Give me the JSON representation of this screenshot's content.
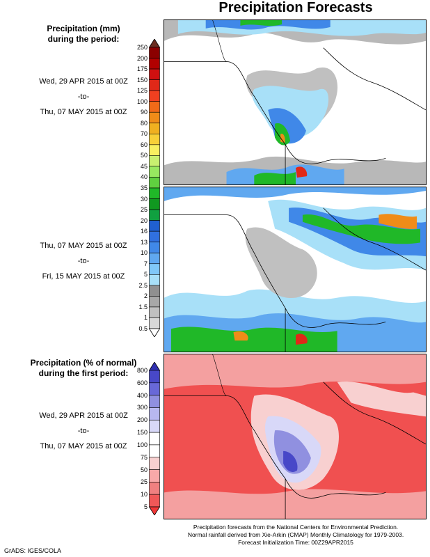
{
  "title": "Precipitation Forecasts",
  "precip_header": [
    "Precipitation (mm)",
    "during the period:"
  ],
  "period1": {
    "start": "Wed, 29 APR 2015 at 00Z",
    "sep": "-to-",
    "end": "Thu, 07 MAY 2015 at 00Z"
  },
  "period2": {
    "start": "Thu, 07 MAY 2015 at 00Z",
    "sep": "-to-",
    "end": "Fri, 15 MAY 2015 at 00Z"
  },
  "anom_header": [
    "Precipitation (% of normal)",
    "during the first period:"
  ],
  "period3": {
    "start": "Wed, 29 APR 2015 at 00Z",
    "sep": "-to-",
    "end": "Thu, 07 MAY 2015 at 00Z"
  },
  "precip_scale": {
    "labels": [
      "250",
      "200",
      "175",
      "150",
      "125",
      "100",
      "90",
      "80",
      "70",
      "60",
      "50",
      "45",
      "40",
      "35",
      "30",
      "25",
      "20",
      "16",
      "13",
      "10",
      "7",
      "5",
      "2.5",
      "2",
      "1.5",
      "1",
      "0.5"
    ],
    "colors": [
      "#6b2d20",
      "#8b0000",
      "#b10000",
      "#d01010",
      "#e02818",
      "#f04020",
      "#f06a18",
      "#f08c18",
      "#f0b020",
      "#f8d038",
      "#f8f060",
      "#c8f070",
      "#98e860",
      "#60d040",
      "#20b828",
      "#109820",
      "#10a040",
      "#2060d0",
      "#3070e0",
      "#4088e8",
      "#60a8f0",
      "#80c8f8",
      "#a8e0f8",
      "#909090",
      "#a8a8a8",
      "#c0c0c0",
      "#d8d8d8",
      "#ffffff"
    ]
  },
  "anom_scale": {
    "labels": [
      "800",
      "600",
      "400",
      "300",
      "200",
      "150",
      "100",
      "75",
      "50",
      "25",
      "10",
      "5"
    ],
    "colors": [
      "#3030b0",
      "#4848c8",
      "#6868d8",
      "#9090e0",
      "#b8b8f0",
      "#d8d8f8",
      "#ffffff",
      "#ffffff",
      "#f8d0d0",
      "#f8a8a8",
      "#f08080",
      "#f05858",
      "#f03838"
    ]
  },
  "footnote": [
    "Precipitation forecasts from the National Centers for Environmental Prediction.",
    "Normal rainfall derived from Xie-Arkin (CMAP) Monthly Climatology for 1979-2003.",
    "Forecast Initialization Time: 00Z29APR2015"
  ],
  "credit": "GrADS: IGES/COLA"
}
